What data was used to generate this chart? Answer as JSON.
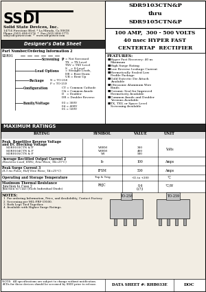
{
  "title_part": "SDR9103CTN&P\nthru\nSDR9105CTN&P",
  "title_desc": "100 AMP,  300 - 500 VOLTS\n40 nsec HYPER FAST\nCENTERTAP  RECTIFIER",
  "company_name": "Solid State Devices, Inc.",
  "company_addr1": "14756 Firestone Blvd. * La Mirada, Ca 90638",
  "company_addr2": "Phone (562) 404-6174  *  Fax (562) 404-1771",
  "company_addr3": "sdi@sdi-power.com  *  www.sdi-power.com",
  "designers_data": "Designer's Data Sheet",
  "part_number_label": "Part Number/Ordering Information 2",
  "features_title": "FEATURES:",
  "features": [
    "Hyper Fast Recovery: 40 ns Maximum",
    "High Surge Rating",
    "Low Reverse Leakage Current",
    "Hermetically Sealed Low Profile Package",
    "Gold Eutectic Die Attach Available",
    "Ultrasonic Aluminum Wire Bonds",
    "Ceramic Seal for Improved Hermeticity Available",
    "Common Anode and Doubler Versions Available",
    "TX, TXV, or Space Level Screening Available"
  ],
  "max_ratings_title": "MAXIMUM RATINGS",
  "table_headers": [
    "RATING",
    "SYMBOL",
    "VALUE",
    "UNIT"
  ],
  "notes_title": "NOTES:",
  "notes": [
    "1  For ordering Information, Price, and Availability, Contact Factory.",
    "2  Screening per MIL-PRF-19500.",
    "3  Both Legs Tied Together.",
    "4  Available with Higher Surge Ratings."
  ],
  "footer_note1": "NOTE:  All specifications are subject to change without notification.",
  "footer_note2": "ACDs for these devices should be screened by SSDI prior to release.",
  "data_sheet": "DATA SHEET #: RHB033E",
  "doc": "DOC",
  "bg_color": "#f2ede3",
  "white": "#ffffff",
  "dark_bar": "#2a2a2a",
  "light_gray": "#e0e0e0"
}
